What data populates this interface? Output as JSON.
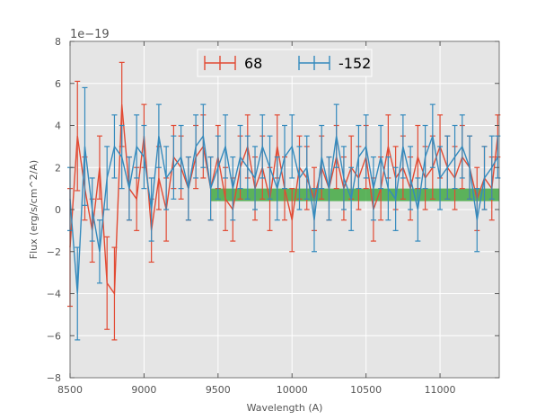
{
  "chart_data": {
    "type": "line",
    "title": "",
    "xlabel": "Wavelength (A)",
    "ylabel": "Flux (erg/s/cm^2/A)",
    "offset_text": "1e−19",
    "xlim": [
      8500,
      11400
    ],
    "ylim": [
      -8,
      8
    ],
    "y_scale_label": "x 1e-19",
    "xticks": [
      8500,
      9000,
      9500,
      10000,
      10500,
      11000
    ],
    "yticks": [
      -8,
      -6,
      -4,
      -2,
      0,
      2,
      4,
      6,
      8
    ],
    "ytick_labels": [
      "−8",
      "−6",
      "−4",
      "−2",
      "0",
      "2",
      "4",
      "6",
      "8"
    ],
    "grid": true,
    "legend_position": "top-center",
    "band": {
      "x_start": 9450,
      "x_end": 11400,
      "y_low": 0.4,
      "y_high": 1.0,
      "color": "#2ca02c"
    },
    "series": [
      {
        "name": "68",
        "color": "#e24a33",
        "x": [
          8500,
          8550,
          8600,
          8650,
          8700,
          8750,
          8800,
          8850,
          8900,
          8950,
          9000,
          9050,
          9100,
          9150,
          9200,
          9250,
          9300,
          9350,
          9400,
          9450,
          9500,
          9550,
          9600,
          9650,
          9700,
          9750,
          9800,
          9850,
          9900,
          9950,
          10000,
          10050,
          10100,
          10150,
          10200,
          10250,
          10300,
          10350,
          10400,
          10450,
          10500,
          10550,
          10600,
          10650,
          10700,
          10750,
          10800,
          10850,
          10900,
          10950,
          11000,
          11050,
          11100,
          11150,
          11200,
          11250,
          11300,
          11350,
          11390
        ],
        "values": [
          -1.8,
          3.5,
          1.0,
          -1.0,
          2.0,
          -3.5,
          -4.0,
          5.0,
          1.0,
          0.5,
          3.5,
          -1.0,
          1.5,
          0.0,
          2.5,
          2.0,
          1.0,
          2.5,
          3.0,
          1.0,
          2.5,
          0.5,
          0.0,
          2.0,
          3.0,
          1.0,
          2.0,
          0.5,
          3.0,
          1.0,
          -0.5,
          2.0,
          1.5,
          0.5,
          2.0,
          1.0,
          2.5,
          1.0,
          2.0,
          1.5,
          2.5,
          0.0,
          1.0,
          3.0,
          1.5,
          2.0,
          1.0,
          2.5,
          1.5,
          2.0,
          3.0,
          2.0,
          1.5,
          2.5,
          2.0,
          0.5,
          1.5,
          1.0,
          3.5
        ],
        "err": [
          2.8,
          2.6,
          1.5,
          1.5,
          1.5,
          2.2,
          2.2,
          2.0,
          1.5,
          1.5,
          1.5,
          1.5,
          1.5,
          1.5,
          1.5,
          1.5,
          1.5,
          1.5,
          1.5,
          1.5,
          1.5,
          1.5,
          1.5,
          1.5,
          1.5,
          1.5,
          1.5,
          1.5,
          1.5,
          1.5,
          1.5,
          1.5,
          1.5,
          1.5,
          1.5,
          1.5,
          1.5,
          1.5,
          1.5,
          1.5,
          1.5,
          1.5,
          1.5,
          1.5,
          1.5,
          1.5,
          1.5,
          1.5,
          1.5,
          1.5,
          1.5,
          1.5,
          1.5,
          1.5,
          1.5,
          1.5,
          1.5,
          1.5,
          1.0
        ]
      },
      {
        "name": "-152",
        "color": "#348abd",
        "x": [
          8500,
          8550,
          8600,
          8650,
          8700,
          8750,
          8800,
          8850,
          8900,
          8950,
          9000,
          9050,
          9100,
          9150,
          9200,
          9250,
          9300,
          9350,
          9400,
          9450,
          9500,
          9550,
          9600,
          9650,
          9700,
          9750,
          9800,
          9850,
          9900,
          9950,
          10000,
          10050,
          10100,
          10150,
          10200,
          10250,
          10300,
          10350,
          10400,
          10450,
          10500,
          10550,
          10600,
          10650,
          10700,
          10750,
          10800,
          10850,
          10900,
          10950,
          11000,
          11050,
          11100,
          11150,
          11200,
          11250,
          11300,
          11350,
          11390
        ],
        "values": [
          0.5,
          -4.0,
          3.0,
          0.0,
          -2.0,
          1.5,
          3.0,
          2.5,
          1.0,
          3.0,
          2.5,
          0.0,
          3.5,
          1.5,
          2.0,
          2.5,
          1.0,
          3.0,
          3.5,
          1.0,
          2.0,
          3.0,
          1.0,
          2.5,
          2.0,
          1.5,
          3.0,
          2.0,
          1.0,
          2.5,
          3.0,
          1.5,
          2.0,
          -0.5,
          2.5,
          1.0,
          3.5,
          1.5,
          0.5,
          2.5,
          3.0,
          1.0,
          2.5,
          1.0,
          0.5,
          3.0,
          1.5,
          0.0,
          2.5,
          3.5,
          1.5,
          2.0,
          2.5,
          3.0,
          2.0,
          -0.5,
          1.5,
          2.0,
          2.5
        ],
        "err": [
          1.5,
          2.2,
          2.8,
          1.5,
          1.5,
          1.5,
          1.5,
          1.5,
          1.5,
          1.5,
          1.5,
          1.5,
          1.5,
          1.5,
          1.5,
          1.5,
          1.5,
          1.5,
          1.5,
          1.5,
          1.5,
          1.5,
          1.5,
          1.5,
          1.5,
          1.5,
          1.5,
          1.5,
          1.5,
          1.5,
          1.5,
          1.5,
          1.5,
          1.5,
          1.5,
          1.5,
          1.5,
          1.5,
          1.5,
          1.5,
          1.5,
          1.5,
          1.5,
          1.5,
          1.5,
          1.5,
          1.5,
          1.5,
          1.5,
          1.5,
          1.5,
          1.5,
          1.5,
          1.5,
          1.5,
          1.5,
          1.5,
          1.5,
          1.0
        ]
      }
    ]
  }
}
